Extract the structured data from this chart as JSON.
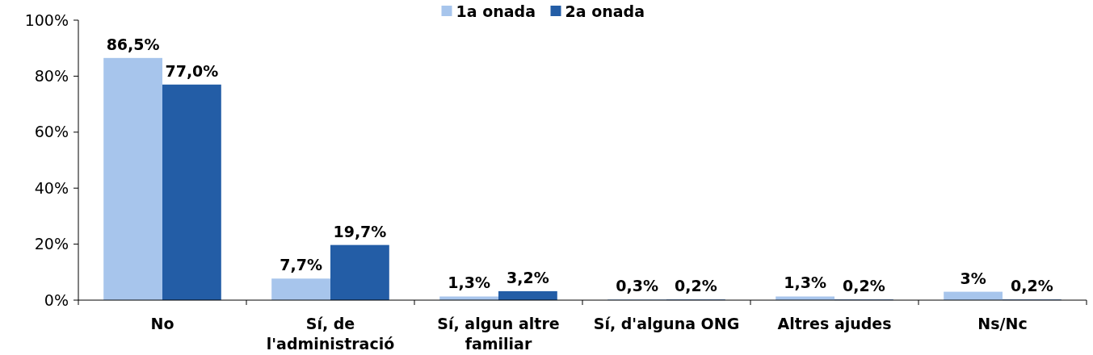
{
  "chart_data": {
    "type": "bar",
    "categories": [
      "No",
      "Sí, de l'administració",
      "Sí, algun altre familiar",
      "Sí, d'alguna ONG",
      "Altres ajudes",
      "Ns/Nc"
    ],
    "series": [
      {
        "name": "1a onada",
        "color": "#a7c5ec",
        "values": [
          86.5,
          7.7,
          1.3,
          0.3,
          1.3,
          3
        ],
        "value_labels": [
          "86,5%",
          "7,7%",
          "1,3%",
          "0,3%",
          "1,3%",
          "3%"
        ]
      },
      {
        "name": "2a onada",
        "color": "#235da6",
        "values": [
          77.0,
          19.7,
          3.2,
          0.2,
          0.2,
          0.2
        ],
        "value_labels": [
          "77,0%",
          "19,7%",
          "3,2%",
          "0,2%",
          "0,2%",
          "0,2%"
        ]
      }
    ],
    "ylim": [
      0,
      100
    ],
    "yticks": [
      {
        "value": 0,
        "label": "0%"
      },
      {
        "value": 20,
        "label": "20%"
      },
      {
        "value": 40,
        "label": "40%"
      },
      {
        "value": 60,
        "label": "60%"
      },
      {
        "value": 80,
        "label": "80%"
      },
      {
        "value": 100,
        "label": "100%"
      }
    ],
    "grid": false,
    "legend": "top"
  }
}
